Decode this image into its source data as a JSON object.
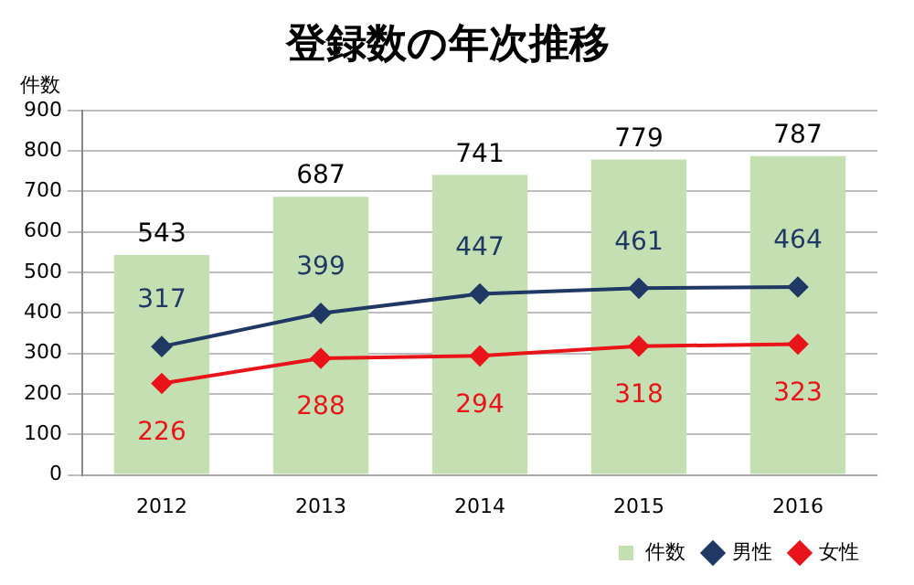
{
  "chart_data": {
    "type": "bar",
    "title": "登録数の年次推移",
    "ylabel": "件数",
    "categories": [
      "2012",
      "2013",
      "2014",
      "2015",
      "2016"
    ],
    "series": [
      {
        "name": "件数",
        "color": "#c4e0b2",
        "values": [
          543,
          687,
          741,
          779,
          787
        ]
      },
      {
        "name": "男性",
        "type": "line",
        "color": "#1f3864",
        "values": [
          317,
          399,
          447,
          461,
          464
        ]
      },
      {
        "name": "女性",
        "type": "line",
        "color": "#e8141a",
        "values": [
          226,
          288,
          294,
          318,
          323
        ]
      }
    ],
    "ylim": [
      0,
      900
    ],
    "yticks": [
      0,
      100,
      200,
      300,
      400,
      500,
      600,
      700,
      800,
      900
    ],
    "grid": "y",
    "legend": "bottom right",
    "marker": "diamond",
    "line_style": "solid",
    "data_labels": true
  }
}
